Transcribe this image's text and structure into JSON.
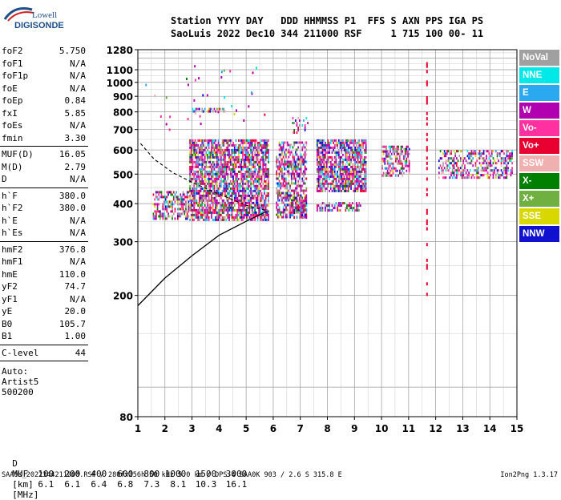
{
  "logo": {
    "line1": "Lowell",
    "line2": "DIGISONDE"
  },
  "header": {
    "line1": "Station YYYY DAY   DDD HHMMSS P1  FFS S AXN PPS IGA PS",
    "line2": "SaoLuis 2022 Dec10 344 211000 RSF     1 715 100 00- 11"
  },
  "params_groups": [
    [
      {
        "k": "foF2",
        "v": "5.750"
      },
      {
        "k": "foF1",
        "v": "N/A"
      },
      {
        "k": "foF1p",
        "v": "N/A"
      },
      {
        "k": "foE",
        "v": "N/A"
      },
      {
        "k": "foEp",
        "v": "0.84"
      },
      {
        "k": "fxI",
        "v": "5.85"
      },
      {
        "k": "foEs",
        "v": "N/A"
      },
      {
        "k": "fmin",
        "v": "3.30"
      }
    ],
    [
      {
        "k": "MUF(D)",
        "v": "16.05"
      },
      {
        "k": "M(D)",
        "v": "2.79"
      },
      {
        "k": "D",
        "v": "N/A"
      }
    ],
    [
      {
        "k": "h`F",
        "v": "380.0"
      },
      {
        "k": "h`F2",
        "v": "380.0"
      },
      {
        "k": "h`E",
        "v": "N/A"
      },
      {
        "k": "h`Es",
        "v": "N/A"
      }
    ],
    [
      {
        "k": "hmF2",
        "v": "376.8"
      },
      {
        "k": "hmF1",
        "v": "N/A"
      },
      {
        "k": "hmE",
        "v": "110.0"
      },
      {
        "k": "yF2",
        "v": "74.7"
      },
      {
        "k": "yF1",
        "v": "N/A"
      },
      {
        "k": "yE",
        "v": "20.0"
      },
      {
        "k": "B0",
        "v": "105.7"
      },
      {
        "k": "B1",
        "v": "1.00"
      }
    ],
    [
      {
        "k": "C-level",
        "v": "44"
      }
    ]
  ],
  "auto": {
    "line1": "Auto:",
    "line2": "Artist5",
    "line3": "500200"
  },
  "legend": [
    {
      "label": "NoVal",
      "color": "#a0a0a0"
    },
    {
      "label": "NNE",
      "color": "#00e8e8"
    },
    {
      "label": "E",
      "color": "#2aa8f0"
    },
    {
      "label": "W",
      "color": "#b000b0"
    },
    {
      "label": "Vo-",
      "color": "#ff30a0"
    },
    {
      "label": "Vo+",
      "color": "#e80030"
    },
    {
      "label": "SSW",
      "color": "#f0b0b0"
    },
    {
      "label": "X-",
      "color": "#008000"
    },
    {
      "label": "X+",
      "color": "#70b040"
    },
    {
      "label": "SSE",
      "color": "#d8d800"
    },
    {
      "label": "NNW",
      "color": "#1010d0"
    }
  ],
  "muf_table": {
    "d_label": "D",
    "muf_label": "MUF",
    "d_values": [
      "100",
      "200",
      "400",
      "600",
      "800",
      "1000",
      "1500",
      "3000"
    ],
    "d_unit": "[km]",
    "muf_values": [
      "6.1",
      "6.1",
      "6.4",
      "6.8",
      "7.3",
      "8.1",
      "10.3",
      "16.1"
    ],
    "muf_unit": "[MHz]"
  },
  "footer": {
    "left": "SAA0K_2022344211000.RSF / 280fx256h 50 kHz 5.0 km / DPS-4 SAA0K 903 / 2.6 S 315.8 E",
    "right": "Ion2Png 1.3.17"
  },
  "chart_data": {
    "type": "scatter",
    "title": "",
    "xlabel": "",
    "ylabel": "",
    "x_range": [
      1,
      15
    ],
    "x_ticks": [
      1,
      2,
      3,
      4,
      5,
      6,
      7,
      8,
      9,
      10,
      11,
      12,
      13,
      14,
      15
    ],
    "y_range": [
      80,
      1280
    ],
    "y_ticks": [
      80,
      200,
      300,
      400,
      500,
      600,
      700,
      800,
      900,
      1000,
      1100,
      1280
    ],
    "y_scale": "log",
    "grid": true,
    "echo_regions": [
      {
        "x": [
          1.55,
          2.9
        ],
        "y": [
          355,
          440
        ],
        "density": 0.55
      },
      {
        "x": [
          2.9,
          5.8
        ],
        "y": [
          355,
          650
        ],
        "density": 0.75
      },
      {
        "x": [
          6.1,
          7.2
        ],
        "y": [
          360,
          640
        ],
        "density": 0.6
      },
      {
        "x": [
          6.6,
          7.2
        ],
        "y": [
          360,
          420
        ],
        "density": 0.6
      },
      {
        "x": [
          7.6,
          9.4
        ],
        "y": [
          440,
          650
        ],
        "density": 0.75
      },
      {
        "x": [
          7.6,
          9.2
        ],
        "y": [
          378,
          405
        ],
        "density": 0.55
      },
      {
        "x": [
          10.0,
          11.0
        ],
        "y": [
          490,
          620
        ],
        "density": 0.55
      },
      {
        "x": [
          12.1,
          14.8
        ],
        "y": [
          490,
          600
        ],
        "density": 0.5
      },
      {
        "x": [
          2.9,
          4.2
        ],
        "y": [
          805,
          825
        ],
        "density": 0.5
      },
      {
        "x": [
          6.7,
          7.3
        ],
        "y": [
          680,
          770
        ],
        "density": 0.25
      }
    ],
    "vertical_streak": {
      "x": 11.65,
      "y": [
        200,
        1230
      ]
    },
    "virtual_height_trace": {
      "x": [
        1.0,
        2.0,
        3.0,
        4.0,
        5.0,
        5.75
      ],
      "y": [
        185,
        228,
        270,
        315,
        350,
        377
      ]
    },
    "extraordinary_trace": {
      "x": [
        1.1,
        1.6,
        2.3,
        3.0,
        4.0,
        5.0,
        5.85
      ],
      "y": [
        630,
        560,
        505,
        470,
        430,
        395,
        378
      ]
    }
  }
}
